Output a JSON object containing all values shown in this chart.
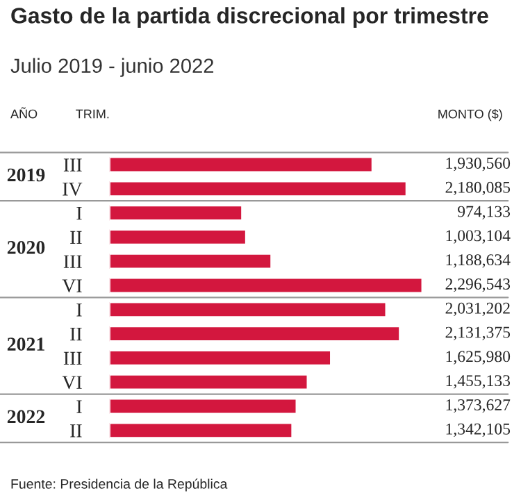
{
  "chart_data": {
    "type": "bar",
    "orientation": "horizontal",
    "title": "Gasto de la partida discrecional por trimestre",
    "subtitle": "Julio 2019 - junio 2022",
    "categories": [
      "III",
      "IV",
      "I",
      "II",
      "III",
      "VI",
      "I",
      "II",
      "III",
      "VI",
      "I",
      "II"
    ],
    "values": [
      1930560,
      2180085,
      974133,
      1003104,
      1188634,
      2296543,
      2031202,
      2131375,
      1625980,
      1455133,
      1373627,
      1342105
    ],
    "value_labels": [
      "1,930,560",
      "2,180,085",
      "974,133",
      "1,003,104",
      "1,188,634",
      "2,296,543",
      "2,031,202",
      "2,131,375",
      "1,625,980",
      "1,455,133",
      "1,373,627",
      "1,342,105"
    ],
    "color": "#d3173e",
    "tick_labels": "y",
    "grid": false,
    "legend": false,
    "annotations": [
      "AÑO",
      "TRIM.",
      "MONTO ($)",
      "2019",
      "2020",
      "2021",
      "2022",
      "Fuente: Presidencia de la República"
    ]
  }
}
